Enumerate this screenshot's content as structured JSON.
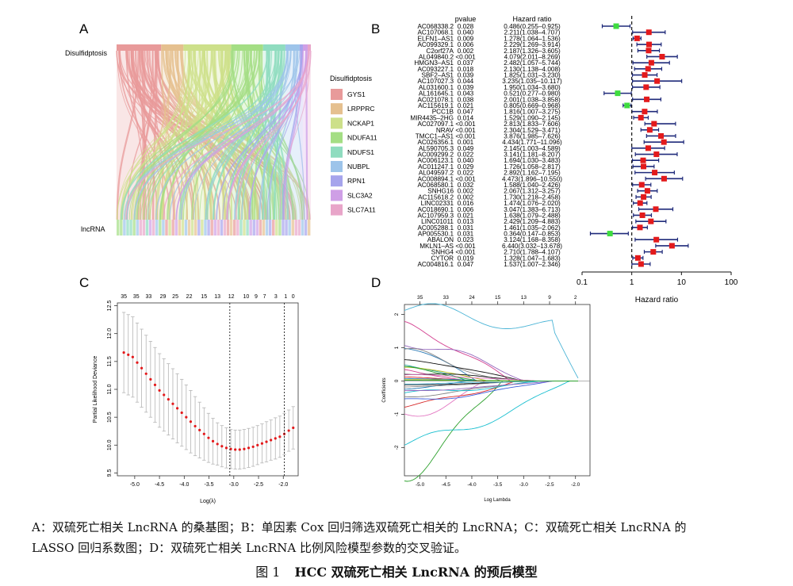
{
  "panels": {
    "a": "A",
    "b": "B",
    "c": "C",
    "d": "D"
  },
  "sankey": {
    "left_label": "Disulfidptosis",
    "bottom_label": "lncRNA",
    "legend_title": "Disulfidptosis",
    "genes": [
      "GYS1",
      "LRPPRC",
      "NCKAP1",
      "NDUFA11",
      "NDUFS1",
      "NUBPL",
      "RPN1",
      "SLC3A2",
      "SLC7A11"
    ],
    "colors": [
      "#e89a9a",
      "#e5c08f",
      "#cde08a",
      "#a4de84",
      "#8fdcbf",
      "#9dc4ea",
      "#a6a4ec",
      "#cf9fe6",
      "#e8a5c9"
    ],
    "weights": [
      28,
      14,
      30,
      20,
      14,
      9,
      2,
      3,
      2
    ]
  },
  "chart_data": [
    {
      "type": "scatter",
      "panel": "B",
      "header_pvalue": "pvalue",
      "header_hr": "Hazard ratio",
      "xlabel": "Hazard ratio",
      "xscale": "log",
      "xlim": [
        0.1,
        100
      ],
      "xticks": [
        "0.1",
        "1",
        "10",
        "100"
      ],
      "reference_line": 1,
      "rows": [
        {
          "name": "AC068338.2",
          "p": "0.028",
          "hr_text": "0.486(0.255–0.925)",
          "hr": 0.486,
          "lo": 0.255,
          "hi": 0.925
        },
        {
          "name": "AC107068.1",
          "p": "0.040",
          "hr_text": "2.211(1.038–4.707)",
          "hr": 2.211,
          "lo": 1.038,
          "hi": 4.707
        },
        {
          "name": "ELFN1–AS1",
          "p": "0.009",
          "hr_text": "1.278(1.064–1.536)",
          "hr": 1.278,
          "lo": 1.064,
          "hi": 1.536
        },
        {
          "name": "AC099329.1",
          "p": "0.006",
          "hr_text": "2.229(1.269–3.914)",
          "hr": 2.229,
          "lo": 1.269,
          "hi": 3.914
        },
        {
          "name": "C2orf27A",
          "p": "0.002",
          "hr_text": "2.187(1.326–3.605)",
          "hr": 2.187,
          "lo": 1.326,
          "hi": 3.605
        },
        {
          "name": "AL049840.2",
          "p": "<0.001",
          "hr_text": "4.079(2.011–8.269)",
          "hr": 4.079,
          "lo": 2.011,
          "hi": 8.269
        },
        {
          "name": "HMGN3–AS1",
          "p": "0.037",
          "hr_text": "2.482(1.057–5.744)",
          "hr": 2.482,
          "lo": 1.057,
          "hi": 5.744
        },
        {
          "name": "AC093227.1",
          "p": "0.018",
          "hr_text": "2.130(1.138–4.008)",
          "hr": 2.13,
          "lo": 1.138,
          "hi": 4.008
        },
        {
          "name": "SBF2–AS1",
          "p": "0.039",
          "hr_text": "1.825(1.031–3.230)",
          "hr": 1.825,
          "lo": 1.031,
          "hi": 3.23
        },
        {
          "name": "AC107027.3",
          "p": "0.044",
          "hr_text": "3.235(1.035–10.117)",
          "hr": 3.235,
          "lo": 1.035,
          "hi": 10.117
        },
        {
          "name": "AL031600.1",
          "p": "0.039",
          "hr_text": "1.950(1.034–3.680)",
          "hr": 1.95,
          "lo": 1.034,
          "hi": 3.68
        },
        {
          "name": "AL161645.1",
          "p": "0.043",
          "hr_text": "0.521(0.277–0.980)",
          "hr": 0.521,
          "lo": 0.277,
          "hi": 0.98
        },
        {
          "name": "AC021078.1",
          "p": "0.038",
          "hr_text": "2.001(1.038–3.858)",
          "hr": 2.001,
          "lo": 1.038,
          "hi": 3.858
        },
        {
          "name": "AC115619.1",
          "p": "0.021",
          "hr_text": "0.805(0.669–0.968)",
          "hr": 0.805,
          "lo": 0.669,
          "hi": 0.968
        },
        {
          "name": "PCC1B",
          "p": "0.047",
          "hr_text": "1.816(1.007–3.275)",
          "hr": 1.816,
          "lo": 1.007,
          "hi": 3.275
        },
        {
          "name": "MIR4435–2HG",
          "p": "0.014",
          "hr_text": "1.529(1.090–2.145)",
          "hr": 1.529,
          "lo": 1.09,
          "hi": 2.145
        },
        {
          "name": "AC027097.1",
          "p": "<0.001",
          "hr_text": "2.813(1.833–7.606)",
          "hr": 2.813,
          "lo": 1.833,
          "hi": 7.606
        },
        {
          "name": "NRAV",
          "p": "<0.001",
          "hr_text": "2.304(1.529–3.471)",
          "hr": 2.304,
          "lo": 1.529,
          "hi": 3.471
        },
        {
          "name": "TMCC1–AS1",
          "p": "<0.001",
          "hr_text": "3.876(1.985–7.626)",
          "hr": 3.876,
          "lo": 1.985,
          "hi": 7.626
        },
        {
          "name": "AC026356.1",
          "p": "0.001",
          "hr_text": "4.434(1.771–11.096)",
          "hr": 4.434,
          "lo": 1.771,
          "hi": 11.096
        },
        {
          "name": "AL590705.3",
          "p": "0.049",
          "hr_text": "2.145(1.003–4.589)",
          "hr": 2.145,
          "lo": 1.003,
          "hi": 4.589
        },
        {
          "name": "AC009299.2",
          "p": "0.022",
          "hr_text": "3.141(1.181–8.207)",
          "hr": 3.141,
          "lo": 1.181,
          "hi": 8.207
        },
        {
          "name": "AC006123.1",
          "p": "0.040",
          "hr_text": "1.694(1.030–3.483)",
          "hr": 1.694,
          "lo": 1.03,
          "hi": 3.483
        },
        {
          "name": "AC011247.1",
          "p": "0.029",
          "hr_text": "1.726(1.058–2.817)",
          "hr": 1.726,
          "lo": 1.058,
          "hi": 2.817
        },
        {
          "name": "AL049597.2",
          "p": "0.022",
          "hr_text": "2.892(1.162–7.195)",
          "hr": 2.892,
          "lo": 1.162,
          "hi": 7.195
        },
        {
          "name": "AC008894.1",
          "p": "<0.001",
          "hr_text": "4.473(1.896–10.550)",
          "hr": 4.473,
          "lo": 1.896,
          "hi": 10.55
        },
        {
          "name": "AC068580.1",
          "p": "0.032",
          "hr_text": "1.588(1.040–2.426)",
          "hr": 1.588,
          "lo": 1.04,
          "hi": 2.426
        },
        {
          "name": "SNHG16",
          "p": "0.002",
          "hr_text": "2.067(1.312–3.257)",
          "hr": 2.067,
          "lo": 1.312,
          "hi": 3.257
        },
        {
          "name": "AC115618.2",
          "p": "0.002",
          "hr_text": "1.730(1.218–2.458)",
          "hr": 1.73,
          "lo": 1.218,
          "hi": 2.458
        },
        {
          "name": "LINC02331",
          "p": "0.016",
          "hr_text": "1.474(1.076–2.020)",
          "hr": 1.474,
          "lo": 1.076,
          "hi": 2.02
        },
        {
          "name": "AC018690.1",
          "p": "0.006",
          "hr_text": "3.047(1.383–6.713)",
          "hr": 3.047,
          "lo": 1.383,
          "hi": 6.713
        },
        {
          "name": "AC107959.3",
          "p": "0.021",
          "hr_text": "1.638(1.079–2.488)",
          "hr": 1.638,
          "lo": 1.079,
          "hi": 2.488
        },
        {
          "name": "LINC01011",
          "p": "0.013",
          "hr_text": "2.429(1.209–4.883)",
          "hr": 2.429,
          "lo": 1.209,
          "hi": 4.883
        },
        {
          "name": "AC005288.1",
          "p": "0.031",
          "hr_text": "1.461(1.035–2.062)",
          "hr": 1.461,
          "lo": 1.035,
          "hi": 2.062
        },
        {
          "name": "AP005530.1",
          "p": "0.031",
          "hr_text": "0.364(0.147–0.853)",
          "hr": 0.364,
          "lo": 0.147,
          "hi": 0.853
        },
        {
          "name": "ABALON",
          "p": "0.023",
          "hr_text": "3.124(1.168–8.358)",
          "hr": 3.124,
          "lo": 1.168,
          "hi": 8.358
        },
        {
          "name": "MKLN1–AS",
          "p": "<0.001",
          "hr_text": "6.440(3.032–13.678)",
          "hr": 6.44,
          "lo": 3.032,
          "hi": 13.678
        },
        {
          "name": "SNHG4",
          "p": "<0.001",
          "hr_text": "2.710(1.788–4.107)",
          "hr": 2.71,
          "lo": 1.788,
          "hi": 4.107
        },
        {
          "name": "CYTOR",
          "p": "0.019",
          "hr_text": "1.328(1.047–1.683)",
          "hr": 1.328,
          "lo": 1.047,
          "hi": 1.683
        },
        {
          "name": "AC004816.1",
          "p": "0.047",
          "hr_text": "1.537(1.007–2.346)",
          "hr": 1.537,
          "lo": 1.007,
          "hi": 2.346
        }
      ]
    },
    {
      "type": "scatter",
      "panel": "C",
      "xlabel": "Log(λ)",
      "ylabel": "Partial Likelihood Deviance",
      "xlim": [
        -5.35,
        -1.7
      ],
      "ylim": [
        9.45,
        12.55
      ],
      "xticks": [
        "-5.0",
        "-4.5",
        "-4.0",
        "-3.5",
        "-3.0",
        "-2.5",
        "-2.0"
      ],
      "yticks": [
        "9.5",
        "10.0",
        "10.5",
        "11.0",
        "11.5",
        "12.0",
        "12.5"
      ],
      "top_counts": [
        "35",
        "35",
        "33",
        "29",
        "25",
        "22",
        "15",
        "13",
        "12",
        "10",
        "9",
        "7",
        "3",
        "1",
        "0"
      ],
      "top_count_x": [
        -5.22,
        -4.97,
        -4.72,
        -4.43,
        -4.18,
        -3.9,
        -3.6,
        -3.33,
        -3.05,
        -2.75,
        -2.55,
        -2.38,
        -2.15,
        -1.95,
        -1.8
      ],
      "vlines": [
        -3.08,
        -1.98
      ],
      "x": [
        -5.22,
        -5.13,
        -5.04,
        -4.95,
        -4.86,
        -4.77,
        -4.68,
        -4.59,
        -4.5,
        -4.41,
        -4.32,
        -4.23,
        -4.14,
        -4.05,
        -3.96,
        -3.87,
        -3.78,
        -3.69,
        -3.6,
        -3.51,
        -3.42,
        -3.33,
        -3.24,
        -3.15,
        -3.06,
        -2.97,
        -2.88,
        -2.79,
        -2.7,
        -2.61,
        -2.52,
        -2.43,
        -2.34,
        -2.25,
        -2.16,
        -2.07,
        -1.98,
        -1.89,
        -1.8
      ],
      "y": [
        11.66,
        11.62,
        11.58,
        11.48,
        11.38,
        11.28,
        11.18,
        11.08,
        10.98,
        10.9,
        10.82,
        10.74,
        10.66,
        10.58,
        10.5,
        10.42,
        10.34,
        10.27,
        10.2,
        10.13,
        10.07,
        10.02,
        9.98,
        9.95,
        9.93,
        9.92,
        9.92,
        9.93,
        9.95,
        9.97,
        10.0,
        10.03,
        10.06,
        10.09,
        10.12,
        10.15,
        10.2,
        10.26,
        10.31
      ],
      "err": [
        0.72,
        0.72,
        0.72,
        0.71,
        0.7,
        0.69,
        0.68,
        0.67,
        0.66,
        0.65,
        0.64,
        0.63,
        0.62,
        0.6,
        0.58,
        0.56,
        0.53,
        0.5,
        0.47,
        0.44,
        0.41,
        0.38,
        0.37,
        0.36,
        0.35,
        0.35,
        0.35,
        0.35,
        0.35,
        0.35,
        0.35,
        0.35,
        0.36,
        0.36,
        0.37,
        0.37,
        0.37,
        0.37,
        0.38
      ]
    },
    {
      "type": "line",
      "panel": "D",
      "xlabel": "Log Lambda",
      "ylabel": "Coefficients",
      "xlim": [
        -5.3,
        -1.72
      ],
      "ylim": [
        -2.85,
        2.3
      ],
      "xticks": [
        "-5.0",
        "-4.5",
        "-4.0",
        "-3.5",
        "-3.0",
        "-2.5",
        "-2.0"
      ],
      "yticks": [
        "-2",
        "-1",
        "0",
        "1",
        "2"
      ],
      "top_counts": [
        "35",
        "33",
        "24",
        "15",
        "13",
        "9",
        "2"
      ],
      "top_count_x": [
        -5.0,
        -4.5,
        -4.0,
        -3.5,
        -3.0,
        -2.5,
        -2.0
      ],
      "end_x": -1.92,
      "series": [
        {
          "color": "#4bb4d6",
          "start": 2.12
        },
        {
          "color": "#2ca02c",
          "start": -2.62
        },
        {
          "color": "#d33f8f",
          "start": 1.62
        },
        {
          "color": "#17becf",
          "start": -1.9
        },
        {
          "color": "#9467bd",
          "start": 1.22
        },
        {
          "color": "#2c7bb6",
          "start": 1.02
        },
        {
          "color": "#e377c2",
          "start": -1.05
        },
        {
          "color": "#888888",
          "start": 0.82
        },
        {
          "color": "#111111",
          "start": 0.62
        },
        {
          "color": "#d62728",
          "start": -0.75
        },
        {
          "color": "#1f9e89",
          "start": 0.52
        },
        {
          "color": "#3b5bdb",
          "start": -0.6
        },
        {
          "color": "#bcbd22",
          "start": 0.42
        },
        {
          "color": "#7f7f7f",
          "start": -0.45
        },
        {
          "color": "#2ca02c",
          "start": 0.36
        },
        {
          "color": "#d33f8f",
          "start": 0.3
        },
        {
          "color": "#17becf",
          "start": -0.38
        },
        {
          "color": "#111111",
          "start": 0.24
        },
        {
          "color": "#9467bd",
          "start": -0.3
        },
        {
          "color": "#e377c2",
          "start": 0.18
        },
        {
          "color": "#1f77b4",
          "start": -0.24
        },
        {
          "color": "#d62728",
          "start": 0.12
        },
        {
          "color": "#888888",
          "start": -0.18
        },
        {
          "color": "#2c7bb6",
          "start": 0.08
        },
        {
          "color": "#111111",
          "start": -0.12
        },
        {
          "color": "#bcbd22",
          "start": 0.04
        },
        {
          "color": "#4bb4d6",
          "start": -0.08
        },
        {
          "color": "#2ca02c",
          "start": 0.02
        }
      ]
    }
  ],
  "caption": {
    "line1": "A：双硫死亡相关 LncRNA 的桑基图；B：单因素 Cox 回归筛选双硫死亡相关的 LncRNA；C：双硫死亡相关 LncRNA 的",
    "line2": "LASSO 回归系数图；D：双硫死亡相关 LncRNA 比例风险模型参数的交叉验证。",
    "fig_num": "图 1",
    "fig_title": "HCC 双硫死亡相关 LncRNA 的预后模型"
  }
}
